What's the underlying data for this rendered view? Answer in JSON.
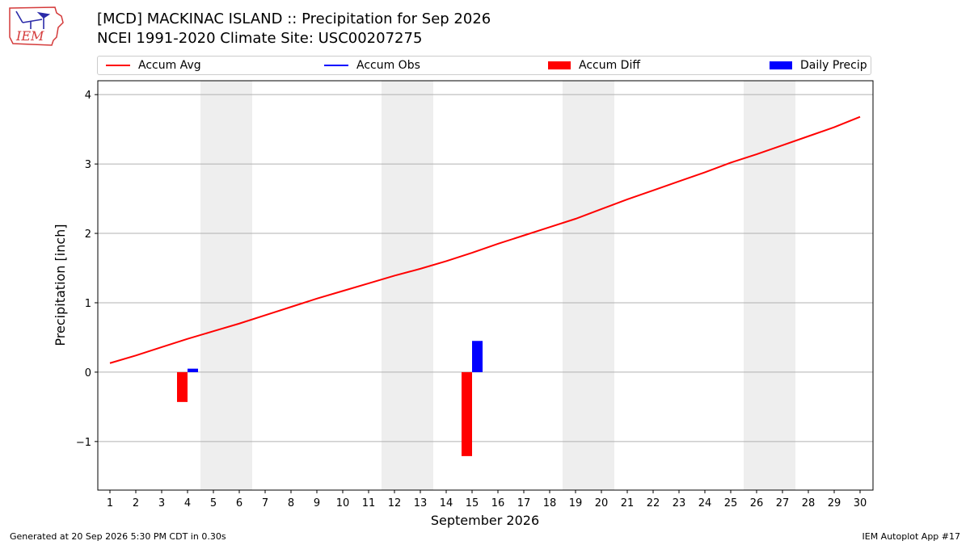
{
  "header": {
    "title_line1": "[MCD] MACKINAC ISLAND :: Precipitation for Sep 2026",
    "title_line2": "NCEI 1991-2020 Climate Site: USC00207275"
  },
  "logo": {
    "text": "IEM",
    "icon": "iowa-state-map-logo"
  },
  "footer": {
    "left": "Generated at 20 Sep 2026 5:30 PM CDT in 0.30s",
    "right": "IEM Autoplot App #17"
  },
  "chart_data": {
    "type": "bar",
    "x": [
      1,
      2,
      3,
      4,
      5,
      6,
      7,
      8,
      9,
      10,
      11,
      12,
      13,
      14,
      15,
      16,
      17,
      18,
      19,
      20,
      21,
      22,
      23,
      24,
      25,
      26,
      27,
      28,
      29,
      30
    ],
    "xlabel": "September 2026",
    "ylabel": "Precipitation [inch]",
    "ylim": [
      -1.7,
      4.2
    ],
    "yticks": [
      -1,
      0,
      1,
      2,
      3,
      4
    ],
    "ytick_labels": [
      "−1",
      "0",
      "1",
      "2",
      "3",
      "4"
    ],
    "grid": true,
    "weekend_shading": [
      [
        5,
        6
      ],
      [
        12,
        13
      ],
      [
        19,
        20
      ],
      [
        26,
        27
      ]
    ],
    "legend": {
      "placement": "top",
      "entries": [
        {
          "label": "Accum Avg",
          "kind": "line",
          "color": "#ff0000"
        },
        {
          "label": "Accum Obs",
          "kind": "line",
          "color": "#0000ff"
        },
        {
          "label": "Accum Diff",
          "kind": "bar",
          "color": "#ff0000"
        },
        {
          "label": "Daily Precip",
          "kind": "bar",
          "color": "#0000ff"
        }
      ]
    },
    "series": [
      {
        "name": "Accum Avg",
        "kind": "line",
        "color": "#ff0000",
        "values": [
          0.13,
          0.24,
          0.36,
          0.48,
          0.59,
          0.7,
          0.82,
          0.94,
          1.06,
          1.17,
          1.28,
          1.39,
          1.49,
          1.6,
          1.72,
          1.85,
          1.97,
          2.09,
          2.21,
          2.35,
          2.49,
          2.62,
          2.75,
          2.88,
          3.02,
          3.14,
          3.27,
          3.4,
          3.53,
          3.68
        ]
      },
      {
        "name": "Accum Diff",
        "kind": "bar",
        "color": "#ff0000",
        "points": [
          {
            "x": 4,
            "y": -0.43
          },
          {
            "x": 15,
            "y": -1.21
          }
        ]
      },
      {
        "name": "Daily Precip",
        "kind": "bar",
        "color": "#0000ff",
        "points": [
          {
            "x": 4,
            "y": 0.05
          },
          {
            "x": 15,
            "y": 0.45
          }
        ]
      }
    ]
  }
}
